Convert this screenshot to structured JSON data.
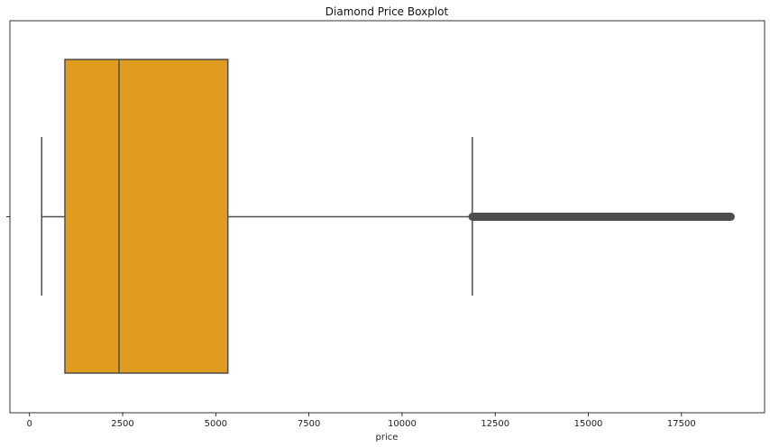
{
  "chart_data": {
    "type": "boxplot",
    "title": "Diamond Price Boxplot",
    "xlabel": "price",
    "ylabel": "",
    "xlim": [
      -526,
      19731
    ],
    "xticks": [
      0,
      2500,
      5000,
      7500,
      10000,
      12500,
      15000,
      17500
    ],
    "xtick_labels": [
      "0",
      "2500",
      "5000",
      "7500",
      "10000",
      "12500",
      "15000",
      "17500"
    ],
    "orientation": "horizontal",
    "grid": false,
    "box": {
      "whisker_low": 326,
      "q1": 950,
      "median": 2401,
      "q3": 5324,
      "whisker_high": 11886,
      "outliers_min": 11890,
      "outliers_max": 18823
    },
    "colors": {
      "box_fill": "#e09c1f",
      "lines": "#4d4d4d",
      "outliers": "#4d4d4d"
    }
  }
}
